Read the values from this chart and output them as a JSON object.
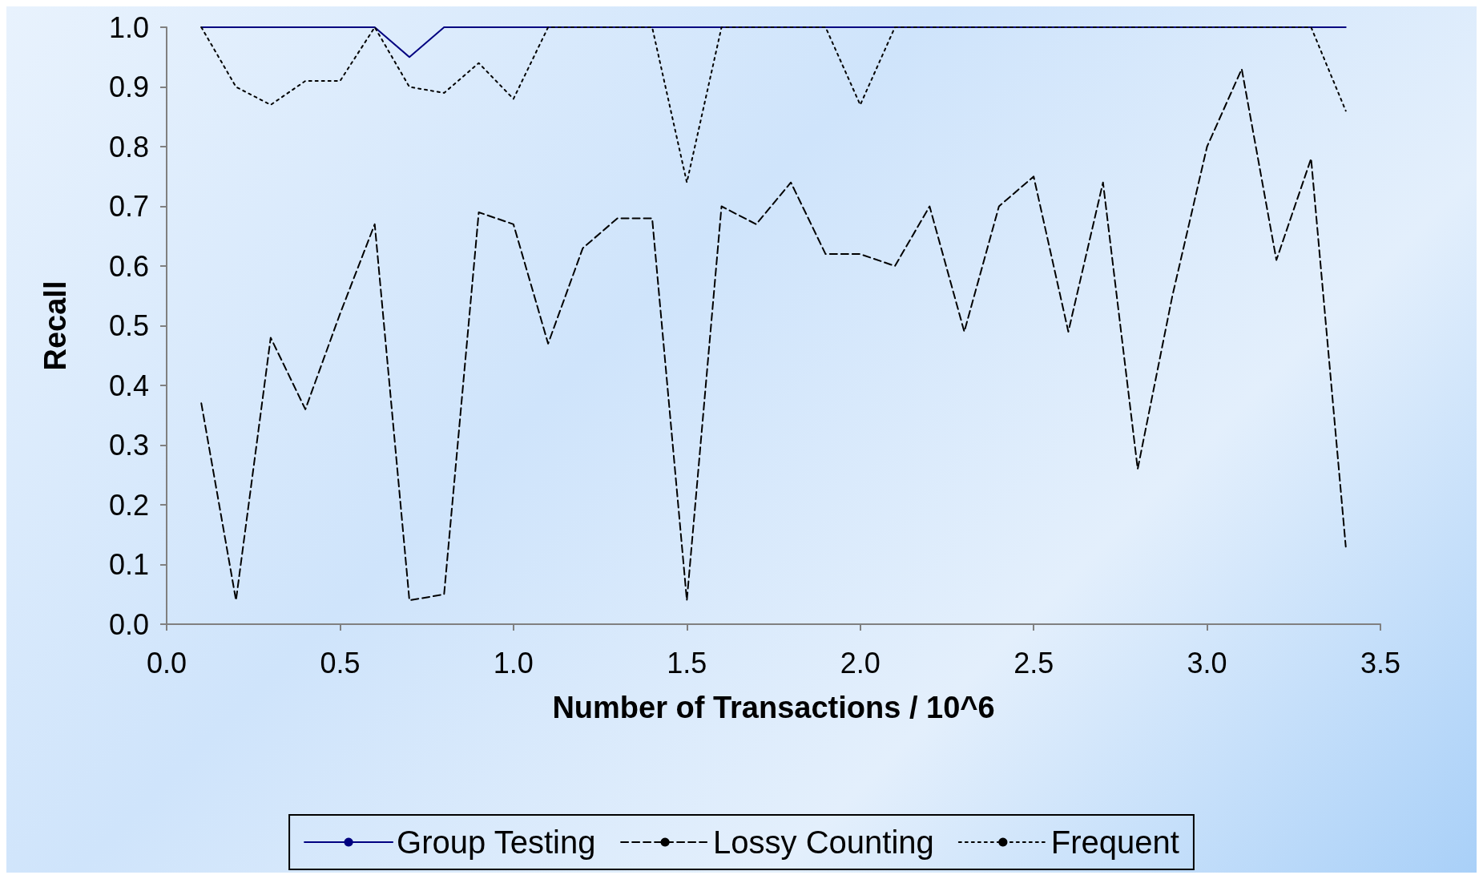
{
  "chart_data": {
    "type": "line",
    "xlabel": "Number of Transactions / 10^6",
    "ylabel": "Recall",
    "x": [
      0.1,
      0.2,
      0.3,
      0.4,
      0.5,
      0.6,
      0.7,
      0.8,
      0.9,
      1.0,
      1.1,
      1.2,
      1.3,
      1.4,
      1.5,
      1.6,
      1.7,
      1.8,
      1.9,
      2.0,
      2.1,
      2.2,
      2.3,
      2.4,
      2.5,
      2.6,
      2.7,
      2.8,
      2.9,
      3.0,
      3.1,
      3.2,
      3.3,
      3.4
    ],
    "series": [
      {
        "name": "Group Testing",
        "color": "#000080",
        "line_style": "solid",
        "values": [
          1,
          1,
          1,
          1,
          1,
          1,
          0.95,
          1,
          1,
          1,
          1,
          1,
          1,
          1,
          1,
          1,
          1,
          1,
          1,
          1,
          1,
          1,
          1,
          1,
          1,
          1,
          1,
          1,
          1,
          1,
          1,
          1,
          1,
          1
        ]
      },
      {
        "name": "Lossy Counting",
        "color": "#000000",
        "line_style": "dashed",
        "values": [
          0.37,
          0.04,
          0.48,
          0.36,
          0.52,
          0.67,
          0.04,
          0.05,
          0.69,
          0.67,
          0.47,
          0.63,
          0.68,
          0.68,
          0.04,
          0.7,
          0.67,
          0.74,
          0.62,
          0.62,
          0.6,
          0.7,
          0.49,
          0.7,
          0.75,
          0.49,
          0.74,
          0.26,
          0.55,
          0.8,
          0.93,
          0.61,
          0.78,
          0.13
        ]
      },
      {
        "name": "Frequent",
        "color": "#000000",
        "line_style": "dotted",
        "values": [
          1,
          0.9,
          0.87,
          0.91,
          0.91,
          1,
          0.9,
          0.89,
          0.94,
          0.88,
          1,
          1,
          1,
          1,
          0.74,
          1,
          1,
          1,
          1,
          0.87,
          1,
          1,
          1,
          1,
          1,
          1,
          1,
          1,
          1,
          1,
          1,
          1,
          1,
          0.86
        ]
      }
    ],
    "xlim": [
      0,
      3.5
    ],
    "xticks": [
      {
        "value": 0,
        "label": "0.0"
      },
      {
        "value": 0.5,
        "label": "0.5"
      },
      {
        "value": 1,
        "label": "1.0"
      },
      {
        "value": 1.5,
        "label": "1.5"
      },
      {
        "value": 2,
        "label": "2.0"
      },
      {
        "value": 2.5,
        "label": "2.5"
      },
      {
        "value": 3,
        "label": "3.0"
      },
      {
        "value": 3.5,
        "label": "3.5"
      }
    ],
    "ylim": [
      0,
      1
    ],
    "yticks": [
      {
        "value": 0,
        "label": "0.0"
      },
      {
        "value": 0.1,
        "label": "0.1"
      },
      {
        "value": 0.2,
        "label": "0.2"
      },
      {
        "value": 0.3,
        "label": "0.3"
      },
      {
        "value": 0.4,
        "label": "0.4"
      },
      {
        "value": 0.5,
        "label": "0.5"
      },
      {
        "value": 0.6,
        "label": "0.6"
      },
      {
        "value": 0.7,
        "label": "0.7"
      },
      {
        "value": 0.8,
        "label": "0.8"
      },
      {
        "value": 0.9,
        "label": "0.9"
      },
      {
        "value": 1,
        "label": "1.0"
      }
    ],
    "grid": false,
    "legend": "bottom",
    "marker": "none"
  }
}
